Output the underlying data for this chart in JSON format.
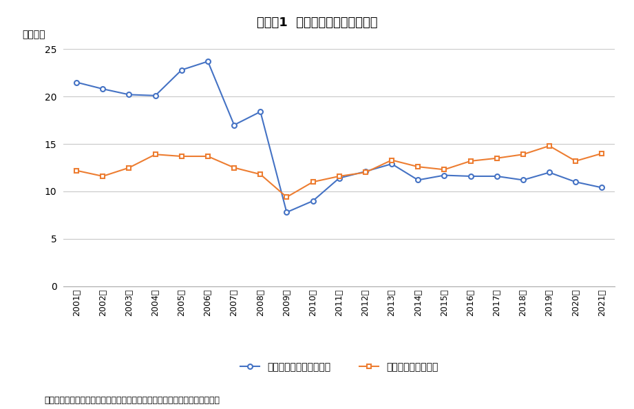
{
  "title": "図表－1  新設住宅着工戸数の推移",
  "ylabel": "（万戸）",
  "source": "（出所）国土交通省「建築着工統計調査」をもとにニッセイ基礎研究所作成",
  "years": [
    2001,
    2002,
    2003,
    2004,
    2005,
    2006,
    2007,
    2008,
    2009,
    2010,
    2011,
    2012,
    2013,
    2014,
    2015,
    2016,
    2017,
    2018,
    2019,
    2020,
    2021
  ],
  "mansion": [
    21.5,
    20.8,
    20.2,
    20.1,
    22.8,
    23.7,
    17.0,
    18.4,
    7.8,
    9.0,
    11.4,
    12.1,
    12.9,
    11.2,
    11.7,
    11.6,
    11.6,
    11.2,
    12.0,
    11.0,
    10.4
  ],
  "ikkodate": [
    12.2,
    11.6,
    12.5,
    13.9,
    13.7,
    13.7,
    12.5,
    11.8,
    9.4,
    11.0,
    11.6,
    12.0,
    13.3,
    12.6,
    12.3,
    13.2,
    13.5,
    13.9,
    14.8,
    13.2,
    14.0
  ],
  "mansion_color": "#4472C4",
  "ikkodate_color": "#ED7D31",
  "mansion_label": "分譲住宅（マンション）",
  "ikkodate_label": "分譲住宅（一戸建）",
  "ylim": [
    0,
    25
  ],
  "yticks": [
    0,
    5,
    10,
    15,
    20,
    25
  ],
  "bg_color": "#FFFFFF",
  "grid_color": "#C8C8C8"
}
